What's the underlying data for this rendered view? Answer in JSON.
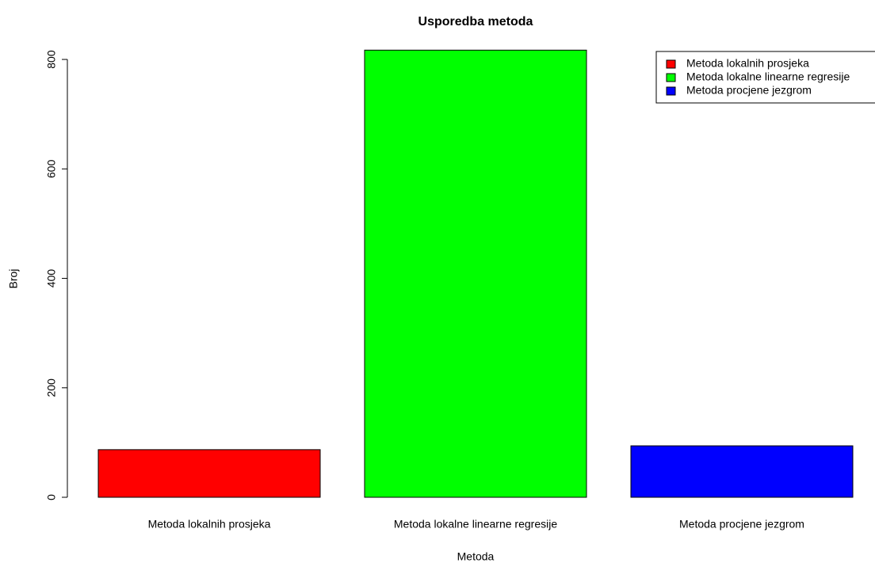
{
  "chart_data": {
    "type": "bar",
    "title": "Usporedba metoda",
    "x_label": "Metoda",
    "y_label": "Broj",
    "categories": [
      "Metoda lokalnih prosjeka",
      "Metoda lokalne linearne regresije",
      "Metoda procjene jezgrom"
    ],
    "series": [
      {
        "name": "Metoda lokalnih prosjeka",
        "color": "#ff0000"
      },
      {
        "name": "Metoda lokalne linearne regresije",
        "color": "#00ff00"
      },
      {
        "name": "Metoda procjene jezgrom",
        "color": "#0000ff"
      }
    ],
    "values": [
      87,
      817,
      94
    ],
    "colors": [
      "#ff0000",
      "#00ff00",
      "#0000ff"
    ],
    "ylim": [
      0,
      850
    ],
    "yticks": [
      0,
      200,
      400,
      600,
      800
    ],
    "grid": false,
    "legend": "topright"
  }
}
